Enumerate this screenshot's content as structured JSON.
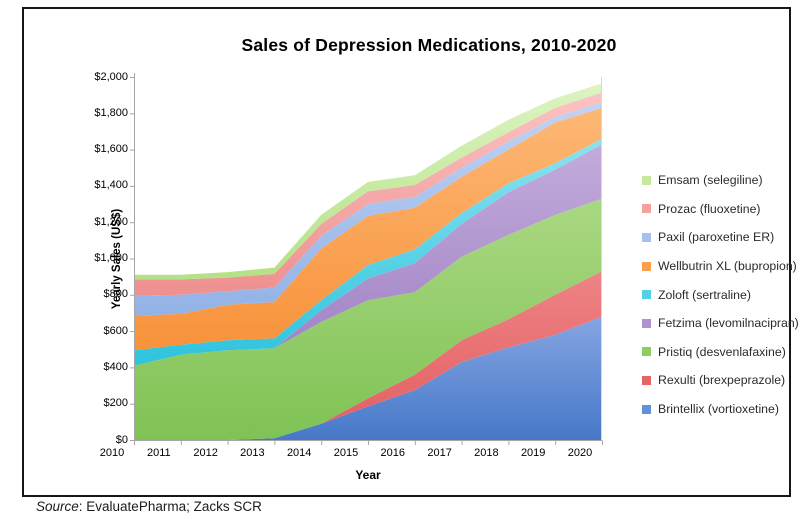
{
  "title": "Sales of Depression Medications, 2010-2020",
  "source": {
    "label": "Source",
    "text": ": EvaluatePharma; Zacks SCR"
  },
  "chart_data": {
    "type": "area",
    "stacked": true,
    "title": "Sales of Depression Medications, 2010-2020",
    "xlabel": "Year",
    "ylabel": "Yearly Sales (US$)",
    "grid": false,
    "legend_position": "right",
    "x": [
      2010,
      2011,
      2012,
      2013,
      2014,
      2015,
      2016,
      2017,
      2018,
      2019,
      2020
    ],
    "ylim": [
      0,
      2000
    ],
    "y_tick_step": 200,
    "y_tick_labels": [
      "$0",
      "$200",
      "$400",
      "$600",
      "$800",
      "$1,000",
      "$1,200",
      "$1,400",
      "$1,600",
      "$1,800",
      "$2,000"
    ],
    "stack_order_note": "series listed bottom-to-top of stack; legend displays reverse order (top of stack first)",
    "series": [
      {
        "name": "Brintellix (vortioxetine)",
        "color": "#6390dc",
        "gradient_top": "#85a5e2",
        "gradient_bottom": "#4678c8",
        "values": [
          0,
          0,
          0,
          10,
          90,
          185,
          275,
          430,
          510,
          580,
          680
        ]
      },
      {
        "name": "Rexulti (brexpeprazole)",
        "color": "#e56567",
        "gradient_top": "#ee8385",
        "gradient_bottom": "#e25e60",
        "values": [
          0,
          0,
          0,
          0,
          0,
          45,
          85,
          120,
          155,
          220,
          250
        ]
      },
      {
        "name": "Pristiq (desvenlafaxine)",
        "color": "#8fcc63",
        "gradient_top": "#aad883",
        "gradient_bottom": "#7fc254",
        "values": [
          410,
          470,
          495,
          495,
          560,
          540,
          455,
          460,
          465,
          440,
          400
        ]
      },
      {
        "name": "Fetzima (levomilnacipran)",
        "color": "#af93cf",
        "gradient_top": "#c3abdb",
        "gradient_bottom": "#9f81c4",
        "values": [
          0,
          0,
          0,
          0,
          65,
          120,
          160,
          180,
          235,
          250,
          300
        ]
      },
      {
        "name": "Zoloft (sertraline)",
        "color": "#55cfe3",
        "gradient_top": "#8ae2f0",
        "gradient_bottom": "#2ec3dd",
        "values": [
          85,
          55,
          55,
          55,
          55,
          75,
          75,
          60,
          50,
          35,
          30
        ]
      },
      {
        "name": "Wellbutrin XL (bupropion)",
        "color": "#fa9f4d",
        "gradient_top": "#fdb876",
        "gradient_bottom": "#f8923a",
        "values": [
          190,
          170,
          195,
          200,
          285,
          270,
          230,
          200,
          185,
          225,
          170
        ]
      },
      {
        "name": "Paxil (paroxetine ER)",
        "color": "#a6c1ee",
        "gradient_top": "#c1d3f4",
        "gradient_bottom": "#92b2e6",
        "values": [
          110,
          105,
          75,
          80,
          70,
          65,
          60,
          50,
          45,
          30,
          30
        ]
      },
      {
        "name": "Prozac (fluoxetine)",
        "color": "#f4a1a0",
        "gradient_top": "#fbc3c2",
        "gradient_bottom": "#ee908f",
        "values": [
          90,
          85,
          75,
          75,
          65,
          70,
          65,
          56,
          51,
          51,
          55
        ]
      },
      {
        "name": "Emsam (selegiline)",
        "color": "#c6e99d",
        "gradient_top": "#ddf4c2",
        "gradient_bottom": "#b4e287",
        "values": [
          25,
          25,
          30,
          35,
          50,
          52,
          54,
          65,
          68,
          52,
          50
        ]
      }
    ],
    "axis_color": "#a6a6a6",
    "plot_right_border_color": "#d9d9d9"
  }
}
